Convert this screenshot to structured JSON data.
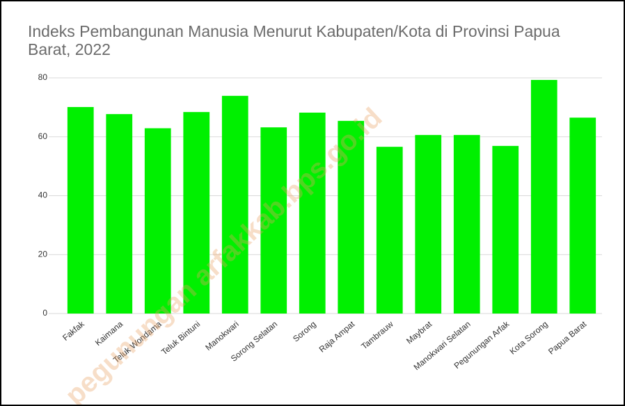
{
  "chart_data": {
    "type": "bar",
    "title": "Indeks Pembangunan Manusia Menurut Kabupaten/Kota di Provinsi Papua Barat, 2022",
    "categories": [
      "Fakfak",
      "Kaimana",
      "Teluk Wondama",
      "Teluk Bintuni",
      "Manokwari",
      "Sorong Selatan",
      "Sorong",
      "Raja Ampat",
      "Tambrauw",
      "Maybrat",
      "Manokwari Selatan",
      "Pegunungan Arfak",
      "Kota Sorong",
      "Papua Barat"
    ],
    "values": [
      70.1,
      67.7,
      62.9,
      68.4,
      73.9,
      63.2,
      68.2,
      65.4,
      56.6,
      60.6,
      60.6,
      56.9,
      79.3,
      66.5
    ],
    "color": "#00f000",
    "ylim": [
      0,
      80
    ],
    "yticks": [
      0,
      20,
      40,
      60,
      80
    ],
    "grid": true,
    "watermark": "pegunungan arfakkab.bps.go.id"
  }
}
